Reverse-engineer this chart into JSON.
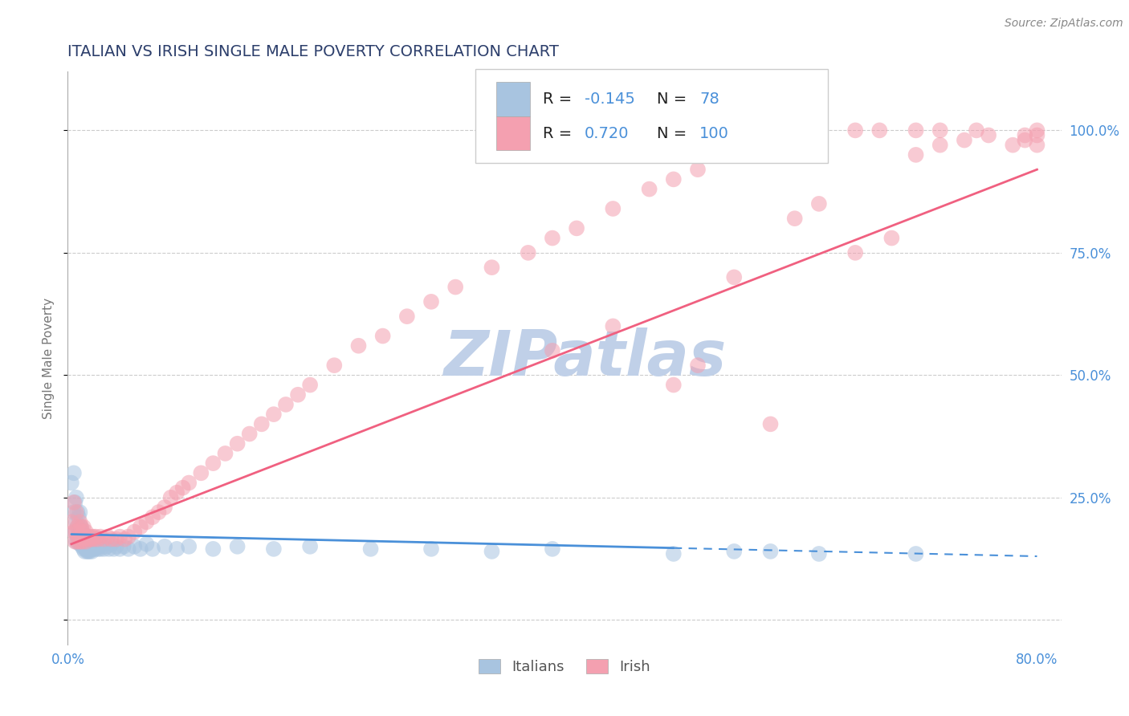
{
  "title": "ITALIAN VS IRISH SINGLE MALE POVERTY CORRELATION CHART",
  "source": "Source: ZipAtlas.com",
  "ylabel": "Single Male Poverty",
  "xlim": [
    0.0,
    0.82
  ],
  "ylim": [
    -0.05,
    1.12
  ],
  "xticks": [
    0.0,
    0.1,
    0.2,
    0.3,
    0.4,
    0.5,
    0.6,
    0.7,
    0.8
  ],
  "xticklabels": [
    "0.0%",
    "",
    "",
    "",
    "",
    "",
    "",
    "",
    "80.0%"
  ],
  "ytick_positions": [
    0.0,
    0.25,
    0.5,
    0.75,
    1.0
  ],
  "ytick_labels_right": [
    "",
    "25.0%",
    "50.0%",
    "75.0%",
    "100.0%"
  ],
  "italians_color": "#a8c4e0",
  "irish_color": "#f4a0b0",
  "italian_line_color": "#4a90d9",
  "irish_line_color": "#f06080",
  "r_italian": -0.145,
  "n_italian": 78,
  "r_irish": 0.72,
  "n_irish": 100,
  "watermark": "ZIPatlas",
  "watermark_color": "#c0d0e8",
  "legend_label_italian": "Italians",
  "legend_label_irish": "Irish",
  "background_color": "#ffffff",
  "grid_color": "#cccccc",
  "title_color": "#2c3e6b",
  "axis_label_color": "#777777",
  "tick_label_color": "#4a90d9",
  "italians_scatter": {
    "x": [
      0.003,
      0.005,
      0.005,
      0.006,
      0.006,
      0.007,
      0.007,
      0.007,
      0.008,
      0.008,
      0.008,
      0.009,
      0.009,
      0.009,
      0.01,
      0.01,
      0.01,
      0.01,
      0.011,
      0.011,
      0.011,
      0.012,
      0.012,
      0.012,
      0.013,
      0.013,
      0.013,
      0.014,
      0.014,
      0.015,
      0.015,
      0.015,
      0.016,
      0.016,
      0.017,
      0.017,
      0.018,
      0.018,
      0.019,
      0.02,
      0.02,
      0.021,
      0.022,
      0.023,
      0.024,
      0.025,
      0.026,
      0.027,
      0.028,
      0.03,
      0.032,
      0.034,
      0.036,
      0.038,
      0.04,
      0.043,
      0.046,
      0.05,
      0.055,
      0.06,
      0.065,
      0.07,
      0.08,
      0.09,
      0.1,
      0.12,
      0.14,
      0.17,
      0.2,
      0.25,
      0.3,
      0.35,
      0.4,
      0.5,
      0.55,
      0.58,
      0.62,
      0.7
    ],
    "y": [
      0.28,
      0.22,
      0.3,
      0.18,
      0.24,
      0.16,
      0.2,
      0.25,
      0.17,
      0.19,
      0.22,
      0.16,
      0.18,
      0.21,
      0.155,
      0.17,
      0.19,
      0.22,
      0.155,
      0.17,
      0.19,
      0.15,
      0.165,
      0.18,
      0.145,
      0.155,
      0.17,
      0.14,
      0.155,
      0.145,
      0.155,
      0.165,
      0.14,
      0.155,
      0.14,
      0.155,
      0.14,
      0.155,
      0.145,
      0.14,
      0.155,
      0.145,
      0.155,
      0.145,
      0.15,
      0.145,
      0.15,
      0.145,
      0.155,
      0.145,
      0.15,
      0.145,
      0.155,
      0.145,
      0.15,
      0.145,
      0.15,
      0.145,
      0.15,
      0.145,
      0.155,
      0.145,
      0.15,
      0.145,
      0.15,
      0.145,
      0.15,
      0.145,
      0.15,
      0.145,
      0.145,
      0.14,
      0.145,
      0.135,
      0.14,
      0.14,
      0.135,
      0.135
    ]
  },
  "irish_scatter": {
    "x": [
      0.003,
      0.005,
      0.005,
      0.006,
      0.007,
      0.007,
      0.008,
      0.008,
      0.009,
      0.01,
      0.01,
      0.011,
      0.011,
      0.012,
      0.012,
      0.013,
      0.013,
      0.014,
      0.015,
      0.015,
      0.016,
      0.017,
      0.018,
      0.019,
      0.02,
      0.021,
      0.022,
      0.023,
      0.025,
      0.027,
      0.03,
      0.033,
      0.036,
      0.04,
      0.043,
      0.047,
      0.05,
      0.055,
      0.06,
      0.065,
      0.07,
      0.075,
      0.08,
      0.085,
      0.09,
      0.095,
      0.1,
      0.11,
      0.12,
      0.13,
      0.14,
      0.15,
      0.16,
      0.17,
      0.18,
      0.19,
      0.2,
      0.22,
      0.24,
      0.26,
      0.28,
      0.3,
      0.32,
      0.35,
      0.38,
      0.4,
      0.42,
      0.45,
      0.48,
      0.5,
      0.52,
      0.55,
      0.57,
      0.6,
      0.62,
      0.65,
      0.67,
      0.7,
      0.72,
      0.75,
      0.4,
      0.45,
      0.5,
      0.52,
      0.55,
      0.58,
      0.6,
      0.62,
      0.65,
      0.68,
      0.7,
      0.72,
      0.74,
      0.76,
      0.78,
      0.79,
      0.79,
      0.8,
      0.8,
      0.8
    ],
    "y": [
      0.2,
      0.18,
      0.24,
      0.16,
      0.18,
      0.22,
      0.16,
      0.19,
      0.17,
      0.16,
      0.2,
      0.17,
      0.19,
      0.16,
      0.18,
      0.165,
      0.19,
      0.17,
      0.16,
      0.18,
      0.165,
      0.17,
      0.165,
      0.17,
      0.165,
      0.17,
      0.165,
      0.17,
      0.165,
      0.17,
      0.165,
      0.17,
      0.165,
      0.165,
      0.17,
      0.165,
      0.17,
      0.18,
      0.19,
      0.2,
      0.21,
      0.22,
      0.23,
      0.25,
      0.26,
      0.27,
      0.28,
      0.3,
      0.32,
      0.34,
      0.36,
      0.38,
      0.4,
      0.42,
      0.44,
      0.46,
      0.48,
      0.52,
      0.56,
      0.58,
      0.62,
      0.65,
      0.68,
      0.72,
      0.75,
      0.78,
      0.8,
      0.84,
      0.88,
      0.9,
      0.92,
      0.95,
      0.97,
      1.0,
      1.0,
      1.0,
      1.0,
      1.0,
      1.0,
      1.0,
      0.55,
      0.6,
      0.48,
      0.52,
      0.7,
      0.4,
      0.82,
      0.85,
      0.75,
      0.78,
      0.95,
      0.97,
      0.98,
      0.99,
      0.97,
      0.98,
      0.99,
      0.97,
      0.99,
      1.0
    ]
  },
  "italian_line": {
    "x0": 0.003,
    "x1": 0.8,
    "y0": 0.175,
    "y1": 0.13
  },
  "irish_line": {
    "x0": 0.003,
    "x1": 0.8,
    "y0": 0.155,
    "y1": 0.92
  }
}
